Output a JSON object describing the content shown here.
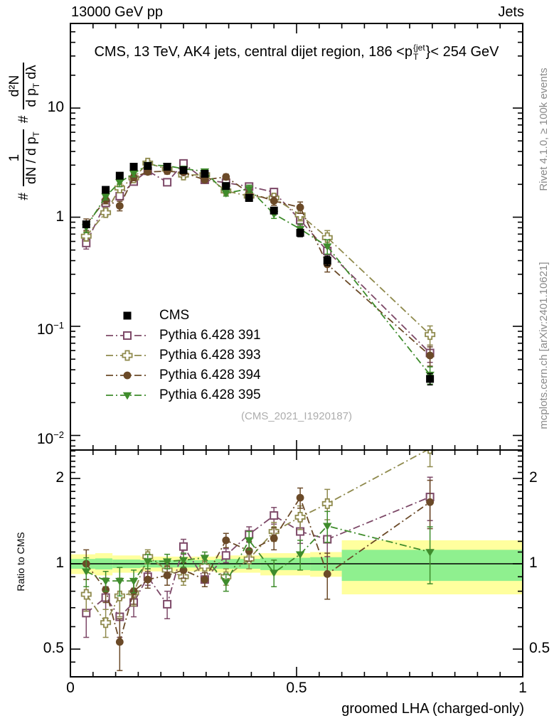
{
  "header": {
    "left": "13000 GeV pp",
    "right": "Jets"
  },
  "panel_title": {
    "prefix": "CMS, 13 TeV, AK4 jets, central dijet region, 186 <p",
    "sup": "{jet",
    "sub": "T",
    "suffix": "}< 254 GeV"
  },
  "ylabel_main": {
    "prefix1": "#",
    "f1_num": "1",
    "f1_den_a": "dN / d p",
    "f1_den_sub": "T",
    "prefix2": "#",
    "f2_num": "d²N",
    "f2_den_a": "d p",
    "f2_den_sub": "T",
    "f2_den_b": " dλ"
  },
  "watermark": "(CMS_2021_I1920187)",
  "side_notes": {
    "top": "Rivet 4.1.0, ≥ 100k events",
    "bottom": "mcplots.cern.ch [arXiv:2401.10621]"
  },
  "colors": {
    "cms": "#000000",
    "pythia391": "#7d4968",
    "pythia393": "#8f8a4d",
    "pythia394": "#6b4a28",
    "pythia395": "#3f8c2c",
    "band_green": "#8ff08f",
    "band_yellow": "#ffff9e",
    "note_gray": "#8a8a8a",
    "watermark_gray": "#adadad"
  },
  "chart_data": {
    "type": "scatter",
    "title": "CMS, 13 TeV, AK4 jets, central dijet region, 186 <p_T^{jet}< 254 GeV",
    "xlabel": "groomed LHA (charged-only)",
    "ylabel": "# 1/(dN / d p_T)  # d²N/(d p_T dλ)",
    "ylabel_ratio": "Ratio to CMS",
    "x": [
      0.035,
      0.078,
      0.109,
      0.14,
      0.171,
      0.214,
      0.25,
      0.297,
      0.344,
      0.395,
      0.45,
      0.508,
      0.568,
      0.795
    ],
    "series": [
      {
        "name": "CMS",
        "marker": "filled-square",
        "color": "#000000",
        "has_line": false,
        "values": [
          0.86,
          1.78,
          2.4,
          2.9,
          2.95,
          2.9,
          2.7,
          2.5,
          1.93,
          1.5,
          1.15,
          0.72,
          0.4,
          0.033
        ],
        "err_rel": [
          0.06,
          0.05,
          0.04,
          0.04,
          0.04,
          0.04,
          0.04,
          0.04,
          0.05,
          0.05,
          0.06,
          0.08,
          0.1,
          0.12
        ]
      },
      {
        "name": "Pythia 6.428 391",
        "marker": "open-square",
        "color": "#7d4968",
        "has_line": true,
        "values": [
          0.58,
          1.35,
          1.56,
          2.12,
          2.66,
          2.09,
          3.11,
          2.2,
          2.07,
          1.91,
          1.7,
          0.94,
          0.49,
          0.057
        ],
        "err_rel": [
          0.12,
          0.07,
          0.08,
          0.07,
          0.05,
          0.06,
          0.05,
          0.05,
          0.06,
          0.07,
          0.08,
          0.1,
          0.14,
          0.18
        ],
        "ratio": [
          0.67,
          0.76,
          0.65,
          0.73,
          0.9,
          0.72,
          1.15,
          0.88,
          1.07,
          1.27,
          1.48,
          1.3,
          1.22,
          1.72
        ],
        "ratio_err": [
          0.12,
          0.07,
          0.1,
          0.08,
          0.06,
          0.08,
          0.07,
          0.05,
          0.06,
          0.08,
          0.1,
          0.12,
          0.16,
          0.3
        ]
      },
      {
        "name": "Pythia 6.428 393",
        "marker": "open-cross",
        "color": "#8f8a4d",
        "has_line": true,
        "values": [
          0.67,
          1.1,
          1.85,
          2.29,
          3.13,
          2.76,
          2.43,
          2.45,
          1.74,
          1.56,
          1.5,
          1.05,
          0.65,
          0.084
        ],
        "err_rel": [
          0.1,
          0.07,
          0.09,
          0.07,
          0.05,
          0.05,
          0.05,
          0.05,
          0.06,
          0.07,
          0.08,
          0.12,
          0.16,
          0.2
        ],
        "ratio": [
          0.78,
          0.62,
          0.77,
          0.79,
          1.06,
          0.95,
          0.9,
          0.98,
          0.9,
          1.04,
          1.3,
          1.46,
          1.63,
          2.55
        ],
        "ratio_err": [
          0.1,
          0.07,
          0.12,
          0.08,
          0.06,
          0.06,
          0.06,
          0.05,
          0.06,
          0.08,
          0.1,
          0.14,
          0.2,
          0.35
        ]
      },
      {
        "name": "Pythia 6.428 394",
        "marker": "filled-circle",
        "color": "#6b4a28",
        "has_line": true,
        "values": [
          0.86,
          1.44,
          1.27,
          2.32,
          2.6,
          2.64,
          2.57,
          2.2,
          2.34,
          1.67,
          1.41,
          1.23,
          0.37,
          0.054
        ],
        "err_rel": [
          0.12,
          0.08,
          0.1,
          0.07,
          0.05,
          0.06,
          0.05,
          0.05,
          0.06,
          0.08,
          0.09,
          0.12,
          0.15,
          0.2
        ],
        "ratio": [
          1.0,
          0.81,
          0.53,
          0.8,
          0.88,
          0.91,
          0.95,
          0.88,
          1.21,
          1.11,
          1.23,
          1.71,
          0.92,
          1.65
        ],
        "ratio_err": [
          0.12,
          0.08,
          0.11,
          0.08,
          0.06,
          0.07,
          0.06,
          0.05,
          0.07,
          0.09,
          0.11,
          0.14,
          0.17,
          0.32
        ]
      },
      {
        "name": "Pythia 6.428 395",
        "marker": "filled-triangle-down",
        "color": "#3f8c2c",
        "has_line": true,
        "values": [
          0.81,
          1.55,
          2.09,
          2.52,
          3.01,
          2.96,
          2.78,
          2.63,
          1.66,
          1.82,
          1.07,
          0.78,
          0.54,
          0.036
        ],
        "err_rel": [
          0.11,
          0.07,
          0.09,
          0.07,
          0.05,
          0.05,
          0.05,
          0.05,
          0.06,
          0.08,
          0.09,
          0.11,
          0.15,
          0.18
        ],
        "ratio": [
          0.94,
          0.87,
          0.87,
          0.87,
          1.02,
          1.02,
          1.03,
          1.05,
          0.86,
          1.21,
          0.93,
          1.08,
          1.36,
          1.1
        ],
        "ratio_err": [
          0.11,
          0.07,
          0.1,
          0.08,
          0.06,
          0.06,
          0.06,
          0.05,
          0.06,
          0.09,
          0.1,
          0.13,
          0.17,
          0.25
        ]
      }
    ],
    "axes": {
      "x": {
        "min": 0,
        "max": 1,
        "minor_step": 0.05,
        "ticks": [
          {
            "v": 0,
            "label": "0"
          },
          {
            "v": 0.5,
            "label": "0.5"
          },
          {
            "v": 1,
            "label": "1"
          }
        ]
      },
      "y_main": {
        "scale": "log",
        "min": 0.0074,
        "max": 59.6,
        "ticks": [
          {
            "v": 10,
            "base": "10"
          },
          {
            "v": 1,
            "base": "1"
          },
          {
            "v": 0.1,
            "base": "10",
            "exp": "−1"
          },
          {
            "v": 0.01,
            "base": "10",
            "exp": "−2"
          }
        ]
      },
      "y_ratio": {
        "scale": "log",
        "min": 0.4,
        "max": 2.52,
        "ticks": [
          {
            "v": 2,
            "label": "2"
          },
          {
            "v": 1,
            "label": "1"
          },
          {
            "v": 0.5,
            "label": "0.5"
          }
        ]
      }
    },
    "reference_line": 1,
    "bands": [
      {
        "x0": 0.0,
        "x1": 0.055,
        "yellow": [
          0.92,
          1.08
        ],
        "green": [
          0.96,
          1.04
        ]
      },
      {
        "x0": 0.055,
        "x1": 0.093,
        "yellow": [
          0.91,
          1.09
        ],
        "green": [
          0.955,
          1.045
        ]
      },
      {
        "x0": 0.093,
        "x1": 0.155,
        "yellow": [
          0.93,
          1.07
        ],
        "green": [
          0.965,
          1.035
        ]
      },
      {
        "x0": 0.155,
        "x1": 0.32,
        "yellow": [
          0.94,
          1.06
        ],
        "green": [
          0.97,
          1.03
        ]
      },
      {
        "x0": 0.32,
        "x1": 0.42,
        "yellow": [
          0.93,
          1.07
        ],
        "green": [
          0.96,
          1.04
        ]
      },
      {
        "x0": 0.42,
        "x1": 0.53,
        "yellow": [
          0.91,
          1.09
        ],
        "green": [
          0.95,
          1.05
        ]
      },
      {
        "x0": 0.53,
        "x1": 0.6,
        "yellow": [
          0.9,
          1.1
        ],
        "green": [
          0.945,
          1.055
        ]
      },
      {
        "x0": 0.6,
        "x1": 1.0,
        "yellow": [
          0.78,
          1.21
        ],
        "green": [
          0.87,
          1.12
        ]
      }
    ]
  }
}
